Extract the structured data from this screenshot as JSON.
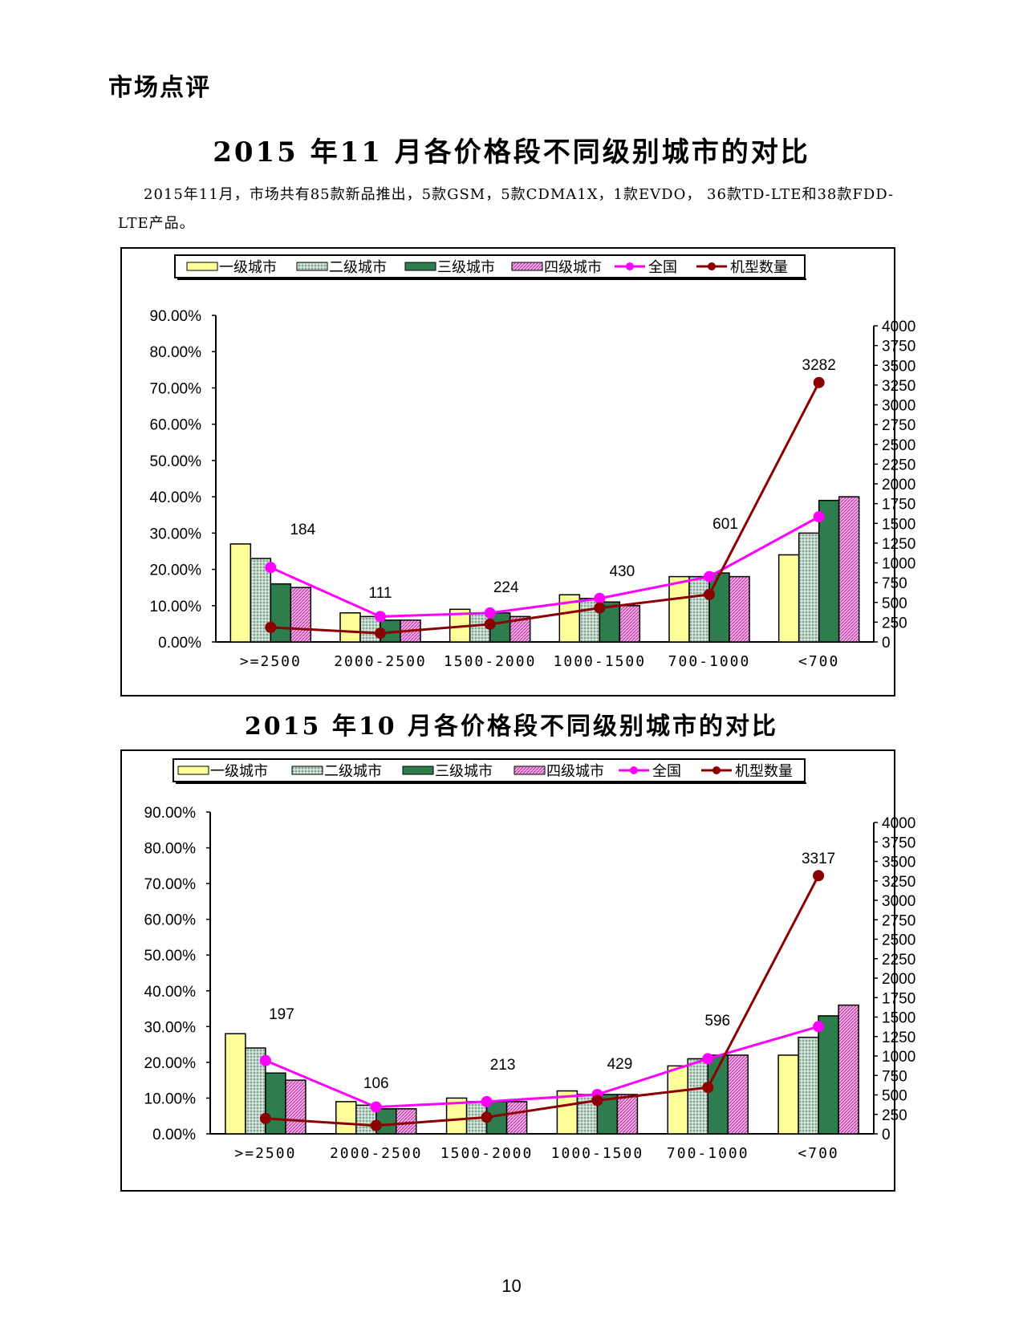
{
  "section_heading": "市场点评",
  "intro_text": "2015年11月，市场共有85款新品推出，5款GSM，5款CDMA1X，1款EVDO， 36款TD-LTE和38款FDD-LTE产品。",
  "page_number": "10",
  "colors": {
    "tier1": "#ffff99",
    "tier2": "#b9d3c4",
    "tier3": "#2e7d4f",
    "tier4": "#f2a9e6",
    "national": "#ff00ff",
    "model_count": "#8b0000"
  },
  "chart_data": [
    {
      "type": "bar",
      "title": "2015 年11 月各价格段不同级别城市的对比",
      "categories": [
        ">=2500",
        "2000-2500",
        "1500-2000",
        "1000-1500",
        "700-1000",
        "<700"
      ],
      "series": [
        {
          "name": "一级城市",
          "type": "bar",
          "axis": "left",
          "values": [
            0.27,
            0.08,
            0.09,
            0.13,
            0.18,
            0.24
          ]
        },
        {
          "name": "二级城市",
          "type": "bar",
          "axis": "left",
          "values": [
            0.23,
            0.07,
            0.08,
            0.12,
            0.18,
            0.3
          ]
        },
        {
          "name": "三级城市",
          "type": "bar",
          "axis": "left",
          "values": [
            0.16,
            0.06,
            0.08,
            0.11,
            0.19,
            0.39
          ]
        },
        {
          "name": "四级城市",
          "type": "bar",
          "axis": "left",
          "values": [
            0.15,
            0.06,
            0.07,
            0.1,
            0.18,
            0.4
          ]
        },
        {
          "name": "全国",
          "type": "line",
          "axis": "left",
          "values": [
            0.205,
            0.07,
            0.08,
            0.12,
            0.18,
            0.345
          ]
        },
        {
          "name": "机型数量",
          "type": "line",
          "axis": "right",
          "values": [
            184,
            111,
            224,
            430,
            601,
            3282
          ]
        }
      ],
      "y_left": {
        "min": 0,
        "max": 0.9,
        "step": 0.1,
        "format": "percent",
        "tick_labels": [
          "0.00%",
          "10.00%",
          "20.00%",
          "30.00%",
          "40.00%",
          "50.00%",
          "60.00%",
          "70.00%",
          "80.00%",
          "90.00%"
        ]
      },
      "y_right": {
        "min": 0,
        "max": 4000,
        "step": 250,
        "tick_labels": [
          "0",
          "250",
          "500",
          "750",
          "1000",
          "1250",
          "1500",
          "1750",
          "2000",
          "2250",
          "2500",
          "2750",
          "3000",
          "3250",
          "3500",
          "3750",
          "4000"
        ]
      },
      "data_labels": [
        "184",
        "111",
        "224",
        "430",
        "601",
        "3282"
      ],
      "legend_position": "top-center"
    },
    {
      "type": "bar",
      "title": "2015 年10 月各价格段不同级别城市的对比",
      "categories": [
        ">=2500",
        "2000-2500",
        "1500-2000",
        "1000-1500",
        "700-1000",
        "<700"
      ],
      "series": [
        {
          "name": "一级城市",
          "type": "bar",
          "axis": "left",
          "values": [
            0.28,
            0.09,
            0.1,
            0.12,
            0.19,
            0.22
          ]
        },
        {
          "name": "二级城市",
          "type": "bar",
          "axis": "left",
          "values": [
            0.24,
            0.08,
            0.09,
            0.11,
            0.21,
            0.27
          ]
        },
        {
          "name": "三级城市",
          "type": "bar",
          "axis": "left",
          "values": [
            0.17,
            0.07,
            0.09,
            0.11,
            0.22,
            0.33
          ]
        },
        {
          "name": "四级城市",
          "type": "bar",
          "axis": "left",
          "values": [
            0.15,
            0.07,
            0.09,
            0.11,
            0.22,
            0.36
          ]
        },
        {
          "name": "全国",
          "type": "line",
          "axis": "left",
          "values": [
            0.205,
            0.075,
            0.09,
            0.11,
            0.21,
            0.3
          ]
        },
        {
          "name": "机型数量",
          "type": "line",
          "axis": "right",
          "values": [
            197,
            106,
            213,
            429,
            596,
            3317
          ]
        }
      ],
      "y_left": {
        "min": 0,
        "max": 0.9,
        "step": 0.1,
        "format": "percent",
        "tick_labels": [
          "0.00%",
          "10.00%",
          "20.00%",
          "30.00%",
          "40.00%",
          "50.00%",
          "60.00%",
          "70.00%",
          "80.00%",
          "90.00%"
        ]
      },
      "y_right": {
        "min": 0,
        "max": 4000,
        "step": 250,
        "tick_labels": [
          "0",
          "250",
          "500",
          "750",
          "1000",
          "1250",
          "1500",
          "1750",
          "2000",
          "2250",
          "2500",
          "2750",
          "3000",
          "3250",
          "3500",
          "3750",
          "4000"
        ]
      },
      "data_labels": [
        "197",
        "106",
        "213",
        "429",
        "596",
        "3317"
      ],
      "legend_position": "top-center"
    }
  ]
}
